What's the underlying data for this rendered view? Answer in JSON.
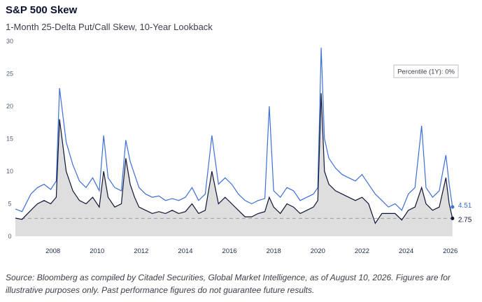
{
  "header": {
    "title": "S&P 500 Skew",
    "subtitle": "1-Month 25-Delta Put/Call Skew, 10-Year Lookback"
  },
  "annotation": "Percentile (1Y): 0%",
  "footer": {
    "source": "Source: Bloomberg as compiled by Citadel Securities, Global Market Intelligence, as of August 10, 2026. Figures are for illustrative purposes only. Past performance figures do not guarantee future results."
  },
  "colors": {
    "blue_series": "#3d6fd6",
    "navy_series": "#0e1434",
    "area_fill": "#dedede",
    "reference_line": "#9aa0aa"
  },
  "chart_data": {
    "type": "line",
    "title": "S&P 500 Skew",
    "subtitle": "1-Month 25-Delta Put/Call Skew, 10-Year Lookback",
    "xlabel": "",
    "ylabel": "",
    "ylim": [
      0,
      30
    ],
    "xlim": [
      2006.3,
      2026.2
    ],
    "yticks": [
      0,
      5,
      10,
      15,
      20,
      25,
      30
    ],
    "xticks": [
      2008,
      2010,
      2012,
      2014,
      2016,
      2018,
      2020,
      2022,
      2024,
      2026
    ],
    "grid": false,
    "legend": "none",
    "reference_line": 2.75,
    "end_labels": [
      "4.51",
      "2.75"
    ],
    "x": [
      2006.3,
      2006.6,
      2007.0,
      2007.3,
      2007.6,
      2007.9,
      2008.15,
      2008.3,
      2008.6,
      2008.9,
      2009.2,
      2009.5,
      2009.8,
      2010.1,
      2010.3,
      2010.5,
      2010.8,
      2011.1,
      2011.3,
      2011.5,
      2011.7,
      2011.9,
      2012.2,
      2012.5,
      2012.8,
      2013.1,
      2013.4,
      2013.7,
      2014.0,
      2014.3,
      2014.6,
      2014.9,
      2015.2,
      2015.5,
      2015.8,
      2016.1,
      2016.4,
      2016.7,
      2017.0,
      2017.3,
      2017.6,
      2017.8,
      2018.0,
      2018.3,
      2018.6,
      2018.9,
      2019.2,
      2019.5,
      2019.8,
      2020.0,
      2020.15,
      2020.3,
      2020.5,
      2020.8,
      2021.1,
      2021.4,
      2021.7,
      2022.0,
      2022.3,
      2022.6,
      2022.9,
      2023.2,
      2023.5,
      2023.8,
      2024.1,
      2024.4,
      2024.7,
      2024.9,
      2025.2,
      2025.5,
      2025.8,
      2025.95,
      2026.1
    ],
    "series": [
      {
        "values": [
          4.2,
          3.8,
          6.5,
          7.5,
          8.0,
          7.2,
          8.5,
          22.8,
          14.5,
          11.0,
          8.5,
          7.5,
          9.0,
          7.0,
          15.5,
          9.0,
          7.5,
          7.0,
          14.8,
          11.5,
          9.5,
          7.5,
          6.5,
          6.0,
          6.2,
          5.5,
          5.8,
          5.5,
          6.0,
          7.5,
          5.5,
          6.5,
          15.5,
          8.0,
          9.0,
          8.0,
          6.5,
          5.5,
          5.0,
          5.5,
          5.8,
          20.0,
          7.0,
          6.0,
          7.5,
          7.0,
          5.5,
          6.0,
          6.5,
          7.5,
          29.0,
          15.0,
          12.0,
          10.5,
          9.5,
          9.0,
          8.5,
          9.5,
          8.0,
          6.5,
          5.5,
          4.5,
          5.0,
          4.0,
          6.5,
          7.5,
          17.0,
          7.5,
          6.0,
          7.0,
          12.5,
          8.0,
          4.51
        ]
      },
      {
        "values": [
          2.8,
          2.6,
          4.0,
          5.0,
          5.5,
          5.0,
          6.0,
          18.0,
          10.0,
          7.0,
          5.5,
          5.0,
          6.0,
          4.5,
          10.0,
          6.0,
          4.5,
          5.0,
          12.0,
          8.0,
          6.0,
          4.5,
          4.0,
          3.5,
          3.8,
          3.5,
          4.0,
          3.5,
          3.8,
          5.0,
          3.5,
          4.0,
          10.0,
          5.0,
          6.0,
          5.0,
          4.0,
          3.0,
          3.0,
          3.5,
          3.8,
          6.0,
          4.5,
          3.5,
          5.0,
          4.5,
          3.5,
          4.0,
          4.5,
          5.5,
          22.0,
          10.0,
          8.0,
          7.0,
          6.5,
          6.0,
          5.5,
          6.0,
          5.0,
          2.0,
          3.5,
          3.5,
          3.5,
          2.5,
          4.0,
          4.5,
          7.5,
          5.0,
          4.0,
          4.5,
          9.0,
          5.0,
          2.75
        ]
      }
    ]
  }
}
